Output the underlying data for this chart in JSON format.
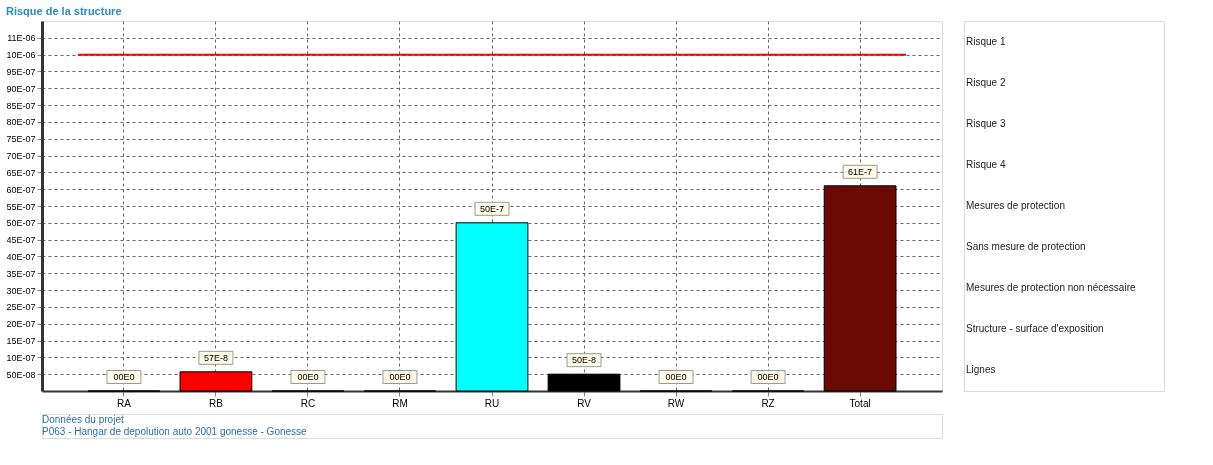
{
  "chart_data": {
    "type": "bar",
    "title": "Risque de la structure",
    "categories": [
      "RA",
      "RB",
      "RC",
      "RM",
      "RU",
      "RV",
      "RW",
      "RZ",
      "Total"
    ],
    "values": [
      0,
      5.7e-07,
      0,
      0,
      5e-06,
      5e-07,
      0,
      0,
      6.1e-06
    ],
    "colors": [
      null,
      "#ff0000",
      null,
      null,
      "#00ffff",
      "#000000",
      null,
      null,
      "#6b0a03"
    ],
    "value_labels": [
      "00E0",
      "57E-8",
      "00E0",
      "00E0",
      "50E-7",
      "50E-8",
      "00E0",
      "00E0",
      "61E-7"
    ],
    "ylim": [
      0,
      1.1e-05
    ],
    "yticks": [
      {
        "value": 5e-07,
        "label": "50E-08"
      },
      {
        "value": 1e-06,
        "label": "10E-07"
      },
      {
        "value": 1.5e-06,
        "label": "15E-07"
      },
      {
        "value": 2e-06,
        "label": "20E-07"
      },
      {
        "value": 2.5e-06,
        "label": "25E-07"
      },
      {
        "value": 3e-06,
        "label": "30E-07"
      },
      {
        "value": 3.5e-06,
        "label": "35E-07"
      },
      {
        "value": 4e-06,
        "label": "40E-07"
      },
      {
        "value": 4.5e-06,
        "label": "45E-07"
      },
      {
        "value": 5e-06,
        "label": "50E-07"
      },
      {
        "value": 5.5e-06,
        "label": "55E-07"
      },
      {
        "value": 6e-06,
        "label": "60E-07"
      },
      {
        "value": 6.5e-06,
        "label": "65E-07"
      },
      {
        "value": 7e-06,
        "label": "70E-07"
      },
      {
        "value": 7.5e-06,
        "label": "75E-07"
      },
      {
        "value": 8e-06,
        "label": "80E-07"
      },
      {
        "value": 8.5e-06,
        "label": "85E-07"
      },
      {
        "value": 9e-06,
        "label": "90E-07"
      },
      {
        "value": 9.5e-06,
        "label": "95E-07"
      },
      {
        "value": 1e-05,
        "label": "10E-06"
      },
      {
        "value": 1.05e-05,
        "label": "11E-06"
      }
    ],
    "ref_lines": [
      {
        "axis": "y",
        "value": 1e-05,
        "color": "#ff0000"
      }
    ],
    "grid": true,
    "annotations": [
      "Risque 1",
      "Risque 2",
      "Risque 3",
      "Risque 4",
      "Mesures de protection",
      "Sans mesure de protection",
      "Mesures de protection non nécessaire",
      "Structure - surface d'exposition",
      "Lignes",
      "Données du projet",
      "P063 - Hangar de depolution auto 2001 gonesse - Gonesse"
    ]
  }
}
